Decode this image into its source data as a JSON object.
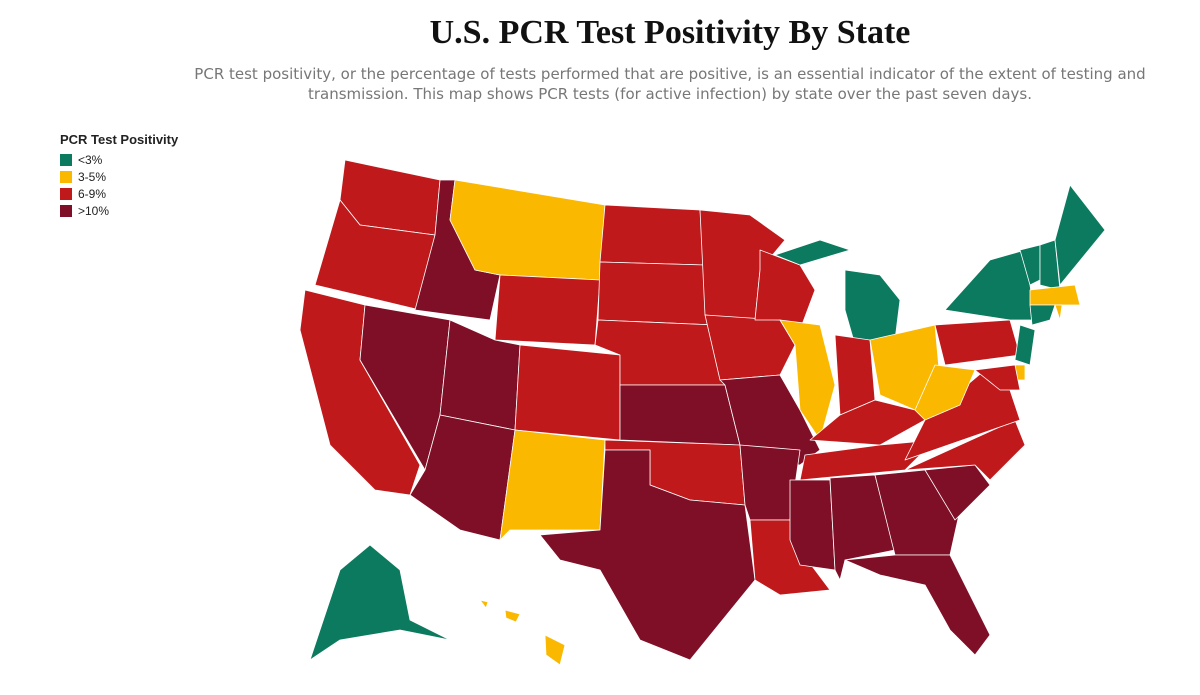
{
  "title": "U.S. PCR Test Positivity By State",
  "subtitle": "PCR test positivity, or the percentage of tests performed that are positive, is an essential indicator of the extent of testing and transmission. This map shows PCR tests (for active infection) by state over the past seven days.",
  "legend": {
    "title": "PCR Test Positivity",
    "items": [
      {
        "label": "<3%",
        "color": "#0b7a5f"
      },
      {
        "label": "3-5%",
        "color": "#fbb800"
      },
      {
        "label": "6-9%",
        "color": "#c0191c"
      },
      {
        "label": ">10%",
        "color": "#7f0f26"
      }
    ]
  },
  "map": {
    "regions": [
      2,
      2,
      2,
      3,
      3,
      1,
      2,
      3,
      3,
      2,
      1,
      2,
      2,
      2,
      3,
      2,
      3,
      2,
      2,
      3,
      3,
      2,
      2,
      1,
      0,
      0,
      2,
      1,
      2,
      2,
      3,
      3,
      3,
      3,
      3,
      2,
      2,
      1,
      2,
      0,
      0,
      0,
      0,
      1,
      0,
      1,
      0,
      1,
      2,
      0,
      1,
      1,
      1
    ]
  }
}
